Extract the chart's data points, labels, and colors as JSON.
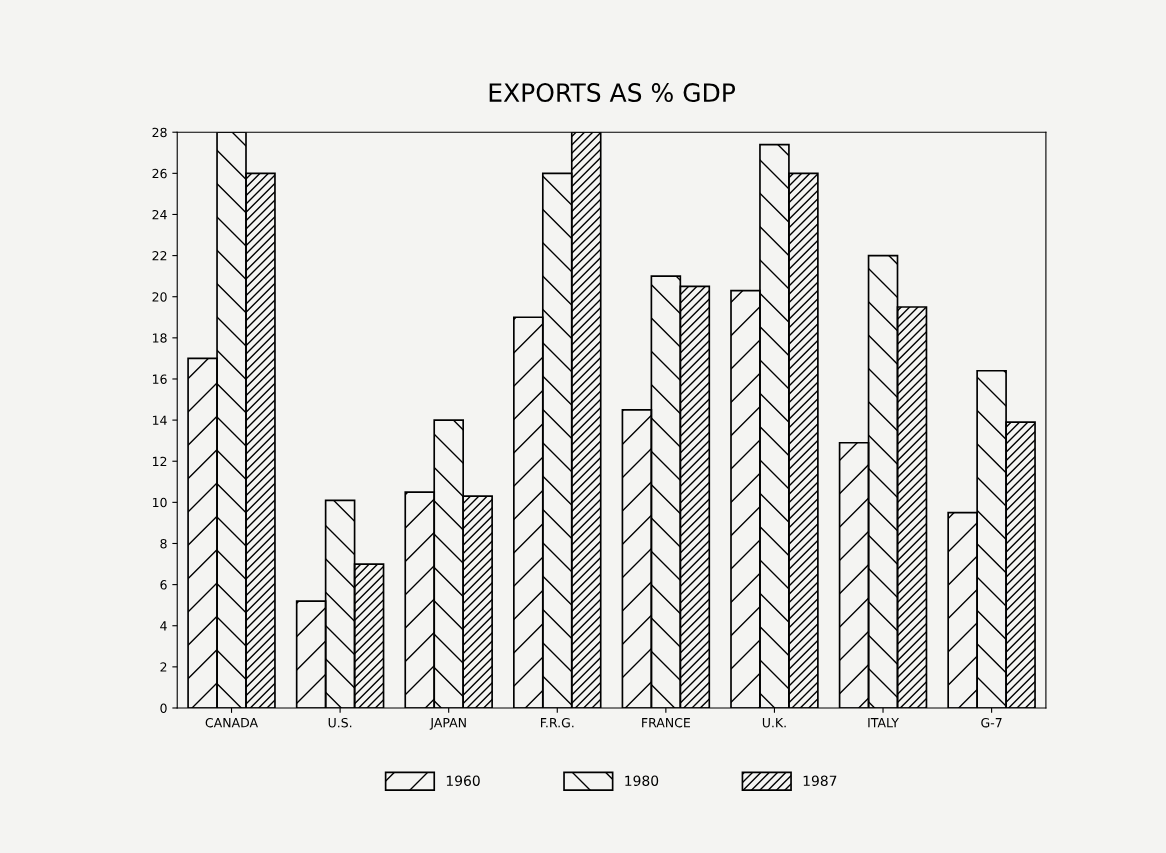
{
  "chart_data": {
    "type": "bar",
    "title": "EXPORTS AS % GDP",
    "categories": [
      "CANADA",
      "U.S.",
      "JAPAN",
      "F.R.G.",
      "FRANCE",
      "U.K.",
      "ITALY",
      "G-7"
    ],
    "series": [
      {
        "name": "1960",
        "color": "#000000",
        "values": [
          17.0,
          5.2,
          10.5,
          19.0,
          14.5,
          20.3,
          12.9,
          9.5
        ]
      },
      {
        "name": "1980",
        "color": "#000000",
        "values": [
          28.0,
          10.1,
          14.0,
          26.0,
          21.0,
          27.4,
          22.0,
          16.4
        ]
      },
      {
        "name": "1987",
        "color": "#000000",
        "values": [
          26.0,
          7.0,
          10.3,
          28.0,
          20.5,
          26.0,
          19.5,
          13.9
        ]
      }
    ],
    "ylim": [
      0,
      28
    ],
    "yticks": [
      0,
      2,
      4,
      6,
      8,
      10,
      12,
      14,
      16,
      18,
      20,
      22,
      24,
      26,
      28
    ],
    "grid": false,
    "legend": "bottom"
  }
}
